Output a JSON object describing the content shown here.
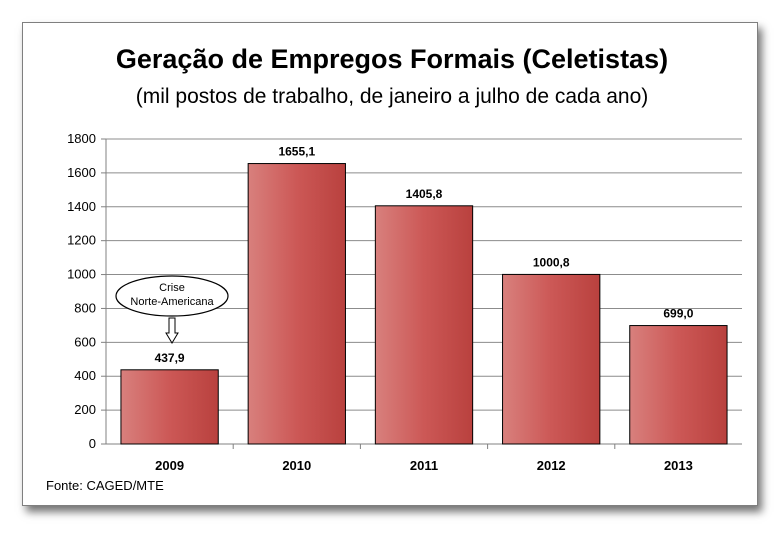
{
  "chart_data": {
    "type": "bar",
    "title": "Geração de Empregos Formais (Celetistas)",
    "subtitle": "(mil postos de trabalho, de janeiro a julho de cada ano)",
    "categories": [
      "2009",
      "2010",
      "2011",
      "2012",
      "2013"
    ],
    "values": [
      437.9,
      1655.1,
      1405.8,
      1000.8,
      699.0
    ],
    "data_labels": [
      "437,9",
      "1655,1",
      "1405,8",
      "1000,8",
      "699,0"
    ],
    "xlabel": "",
    "ylabel": "",
    "ylim": [
      0,
      1800
    ],
    "yticks": [
      0,
      200,
      400,
      600,
      800,
      1000,
      1200,
      1400,
      1600,
      1800
    ],
    "grid": true,
    "legend": "none",
    "bar_color": "#c0504d",
    "annotation": {
      "text_line1": "Crise",
      "text_line2": "Norte-Americana",
      "category": "2009"
    },
    "source": "Fonte:  CAGED/MTE"
  }
}
